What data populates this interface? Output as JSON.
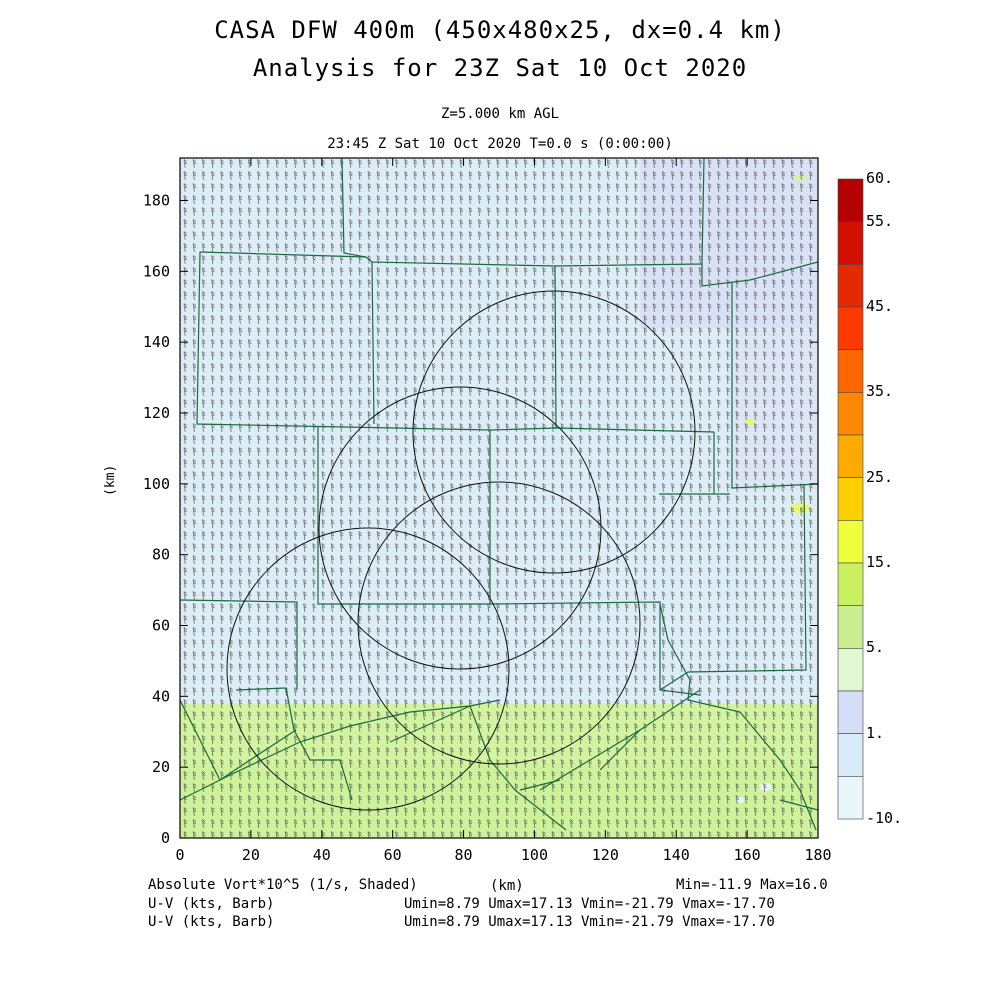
{
  "header": {
    "title_line1": "CASA DFW 400m (450x480x25, dx=0.4 km)",
    "title_line2": "Analysis for 23Z Sat 10 Oct 2020",
    "level": "Z=5.000 km AGL",
    "valid_time": "23:45 Z Sat 10 Oct 2020    T=0.0 s (0:00:00)"
  },
  "axes": {
    "x_label": "(km)",
    "y_label": "(km)",
    "x_ticks": [
      "0",
      "20",
      "40",
      "60",
      "80",
      "100",
      "120",
      "140",
      "160",
      "180"
    ],
    "y_ticks": [
      "0",
      "20",
      "40",
      "60",
      "80",
      "100",
      "120",
      "140",
      "160",
      "180"
    ],
    "x_range": [
      0,
      180
    ],
    "y_range": [
      0,
      192
    ]
  },
  "colorbar": {
    "labels": [
      "60.",
      "55.",
      "45.",
      "35.",
      "25.",
      "15.",
      "5.",
      "1.",
      "-10."
    ],
    "colors": [
      "#b40000",
      "#d21000",
      "#e62a00",
      "#ff3a00",
      "#ff6600",
      "#ff8800",
      "#ffaa00",
      "#ffd000",
      "#f0ff3c",
      "#c8f060",
      "#c8ee90",
      "#e0f8d0",
      "#d6ddf6",
      "#d9eaf8",
      "#e8f6fc"
    ]
  },
  "footer": {
    "field": "Absolute Vort*10^5 (1/s, Shaded)",
    "units": "(km)",
    "minmax": "Min=-11.9 Max=16.0",
    "barb1": "U-V (kts, Barb)",
    "barb2": "U-V (kts, Barb)",
    "stats1": "Umin=8.79 Umax=17.13 Vmin=-21.79 Vmax=-17.70",
    "stats2": "Umin=8.79 Umax=17.13 Vmin=-21.79 Vmax=-17.70"
  },
  "chart_data": {
    "type": "heatmap",
    "field": "absolute vorticity",
    "regions": [
      {
        "y_range": [
          38,
          192
        ],
        "value_class": "-10 to 1"
      },
      {
        "y_range": [
          0,
          38
        ],
        "value_class": "5 to 15"
      }
    ],
    "radar_rings": [
      {
        "cx_km": 55,
        "cy_km": 48,
        "r_km": 40
      },
      {
        "cx_km": 80,
        "cy_km": 88,
        "r_km": 40
      },
      {
        "cx_km": 107,
        "cy_km": 116,
        "r_km": 40
      },
      {
        "cx_km": 92,
        "cy_km": 61,
        "r_km": 40
      }
    ]
  }
}
